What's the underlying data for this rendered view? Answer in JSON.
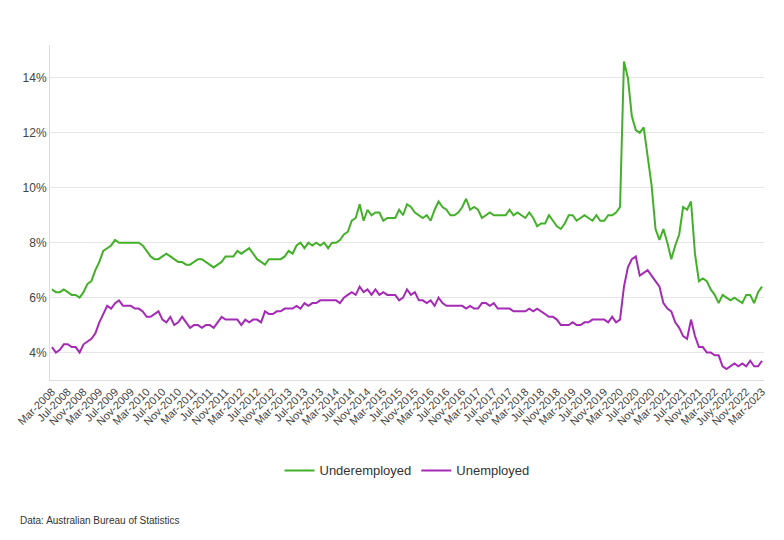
{
  "chart_data": {
    "type": "line",
    "annotations": [
      "Data: Australian Bureau of Statistics"
    ],
    "categories": [
      "Mar-2008",
      null,
      null,
      null,
      "Jul-2008",
      null,
      null,
      null,
      "Nov-2008",
      null,
      null,
      null,
      "Mar-2009",
      null,
      null,
      null,
      "Jul-2009",
      null,
      null,
      null,
      "Nov-2009",
      null,
      null,
      null,
      "Mar-2010",
      null,
      null,
      null,
      "Jul-2010",
      null,
      null,
      null,
      "Nov-2010",
      null,
      null,
      null,
      "Mar-2011",
      null,
      null,
      null,
      "Jul-2011",
      null,
      null,
      null,
      "Nov-2011",
      null,
      null,
      null,
      "Mar-2012",
      null,
      null,
      null,
      "Jul-2012",
      null,
      null,
      null,
      "Nov-2012",
      null,
      null,
      null,
      "Mar-2013",
      null,
      null,
      null,
      "Jul-2013",
      null,
      null,
      null,
      "Nov-2013",
      null,
      null,
      null,
      "Mar-2014",
      null,
      null,
      null,
      "Jul-2014",
      null,
      null,
      null,
      "Nov-2014",
      null,
      null,
      null,
      "Mar-2015",
      null,
      null,
      null,
      "Jul-2015",
      null,
      null,
      null,
      "Nov-2015",
      null,
      null,
      null,
      "Mar-2016",
      null,
      null,
      null,
      "Jul-2016",
      null,
      null,
      null,
      "Nov-2016",
      null,
      null,
      null,
      "Mar-2017",
      null,
      null,
      null,
      "Jul-2017",
      null,
      null,
      null,
      "Nov-2017",
      null,
      null,
      null,
      "Mar-2018",
      null,
      null,
      null,
      "Jul-2018",
      null,
      null,
      null,
      "Nov-2018",
      null,
      null,
      null,
      "Mar-2019",
      null,
      null,
      null,
      "Jul-2019",
      null,
      null,
      null,
      "Nov-2019",
      null,
      null,
      null,
      "Mar-2020",
      null,
      null,
      null,
      "Jul-2020",
      null,
      null,
      null,
      "Nov-2020",
      null,
      null,
      null,
      "Mar-2021",
      null,
      null,
      null,
      "Jul-2021",
      null,
      null,
      null,
      "Nov-2021",
      null,
      null,
      null,
      "Mar-2022",
      null,
      null,
      null,
      "July-2022",
      null,
      null,
      null,
      "Nov-2022",
      null,
      null,
      null,
      "Mar-2023"
    ],
    "series": [
      {
        "name": "Underemployed",
        "color": "#43b02a",
        "values": [
          6.3,
          6.2,
          6.2,
          6.3,
          6.2,
          6.1,
          6.1,
          6.0,
          6.2,
          6.5,
          6.6,
          7.0,
          7.3,
          7.7,
          7.8,
          7.9,
          8.1,
          8.0,
          8.0,
          8.0,
          8.0,
          8.0,
          8.0,
          7.9,
          7.7,
          7.5,
          7.4,
          7.4,
          7.5,
          7.6,
          7.5,
          7.4,
          7.3,
          7.3,
          7.2,
          7.2,
          7.3,
          7.4,
          7.4,
          7.3,
          7.2,
          7.1,
          7.2,
          7.3,
          7.5,
          7.5,
          7.5,
          7.7,
          7.6,
          7.7,
          7.8,
          7.6,
          7.4,
          7.3,
          7.2,
          7.4,
          7.4,
          7.4,
          7.4,
          7.5,
          7.7,
          7.6,
          7.9,
          8.0,
          7.8,
          8.0,
          7.9,
          8.0,
          7.9,
          8.0,
          7.8,
          8.0,
          8.0,
          8.1,
          8.3,
          8.4,
          8.8,
          8.9,
          9.4,
          8.8,
          9.2,
          9.0,
          9.1,
          9.1,
          8.8,
          8.9,
          8.9,
          8.9,
          9.2,
          9.0,
          9.4,
          9.3,
          9.1,
          9.0,
          8.9,
          9.0,
          8.8,
          9.2,
          9.5,
          9.3,
          9.2,
          9.0,
          9.0,
          9.1,
          9.3,
          9.6,
          9.2,
          9.3,
          9.2,
          8.9,
          9.0,
          9.1,
          9.0,
          9.0,
          9.0,
          9.0,
          9.2,
          9.0,
          9.1,
          9.0,
          8.9,
          9.1,
          8.9,
          8.6,
          8.7,
          8.7,
          9.0,
          8.8,
          8.6,
          8.5,
          8.7,
          9.0,
          9.0,
          8.8,
          8.9,
          9.0,
          8.9,
          8.8,
          9.0,
          8.8,
          8.8,
          9.0,
          9.0,
          9.1,
          9.3,
          14.6,
          14.0,
          12.6,
          12.1,
          12.0,
          12.2,
          11.2,
          10.1,
          8.5,
          8.1,
          8.5,
          8.0,
          7.4,
          7.9,
          8.3,
          9.3,
          9.2,
          9.5,
          7.6,
          6.6,
          6.7,
          6.6,
          6.3,
          6.1,
          5.8,
          6.1,
          6.0,
          5.9,
          6.0,
          5.9,
          5.8,
          6.1,
          6.1,
          5.8,
          6.2,
          6.4
        ]
      },
      {
        "name": "Unemployed",
        "color": "#a52ab5",
        "values": [
          4.2,
          4.0,
          4.1,
          4.3,
          4.3,
          4.2,
          4.2,
          4.0,
          4.3,
          4.4,
          4.5,
          4.7,
          5.1,
          5.4,
          5.7,
          5.6,
          5.8,
          5.9,
          5.7,
          5.7,
          5.7,
          5.6,
          5.6,
          5.5,
          5.3,
          5.3,
          5.4,
          5.5,
          5.2,
          5.1,
          5.3,
          5.0,
          5.1,
          5.3,
          5.1,
          4.9,
          5.0,
          5.0,
          4.9,
          5.0,
          5.0,
          4.9,
          5.1,
          5.3,
          5.2,
          5.2,
          5.2,
          5.2,
          5.0,
          5.2,
          5.1,
          5.2,
          5.2,
          5.1,
          5.5,
          5.4,
          5.4,
          5.5,
          5.5,
          5.6,
          5.6,
          5.6,
          5.7,
          5.6,
          5.8,
          5.7,
          5.8,
          5.8,
          5.9,
          5.9,
          5.9,
          5.9,
          5.9,
          5.8,
          6.0,
          6.1,
          6.2,
          6.1,
          6.4,
          6.2,
          6.3,
          6.1,
          6.3,
          6.1,
          6.2,
          6.1,
          6.1,
          6.1,
          5.9,
          6.0,
          6.3,
          6.1,
          6.2,
          5.9,
          5.9,
          5.8,
          5.9,
          5.7,
          6.0,
          5.8,
          5.7,
          5.7,
          5.7,
          5.7,
          5.7,
          5.6,
          5.7,
          5.6,
          5.6,
          5.8,
          5.8,
          5.7,
          5.8,
          5.6,
          5.6,
          5.6,
          5.6,
          5.5,
          5.5,
          5.5,
          5.5,
          5.6,
          5.5,
          5.6,
          5.5,
          5.4,
          5.3,
          5.3,
          5.2,
          5.0,
          5.0,
          5.0,
          5.1,
          5.0,
          5.0,
          5.1,
          5.1,
          5.2,
          5.2,
          5.2,
          5.2,
          5.1,
          5.3,
          5.1,
          5.2,
          6.4,
          7.1,
          7.4,
          7.5,
          6.8,
          6.9,
          7.0,
          6.8,
          6.6,
          6.4,
          5.8,
          5.6,
          5.5,
          5.1,
          4.9,
          4.6,
          4.5,
          5.2,
          4.6,
          4.2,
          4.2,
          4.0,
          4.0,
          3.9,
          3.9,
          3.5,
          3.4,
          3.5,
          3.6,
          3.5,
          3.6,
          3.5,
          3.7,
          3.5,
          3.5,
          3.7
        ]
      }
    ],
    "ylim": [
      3,
      15.2
    ],
    "yticks": [
      {
        "value": 4,
        "label": "4%"
      },
      {
        "value": 6,
        "label": "6%"
      },
      {
        "value": 8,
        "label": "8%"
      },
      {
        "value": 10,
        "label": "10%"
      },
      {
        "value": 12,
        "label": "12%"
      },
      {
        "value": 14,
        "label": "14%"
      }
    ],
    "grid": true,
    "legend": "bottom"
  }
}
